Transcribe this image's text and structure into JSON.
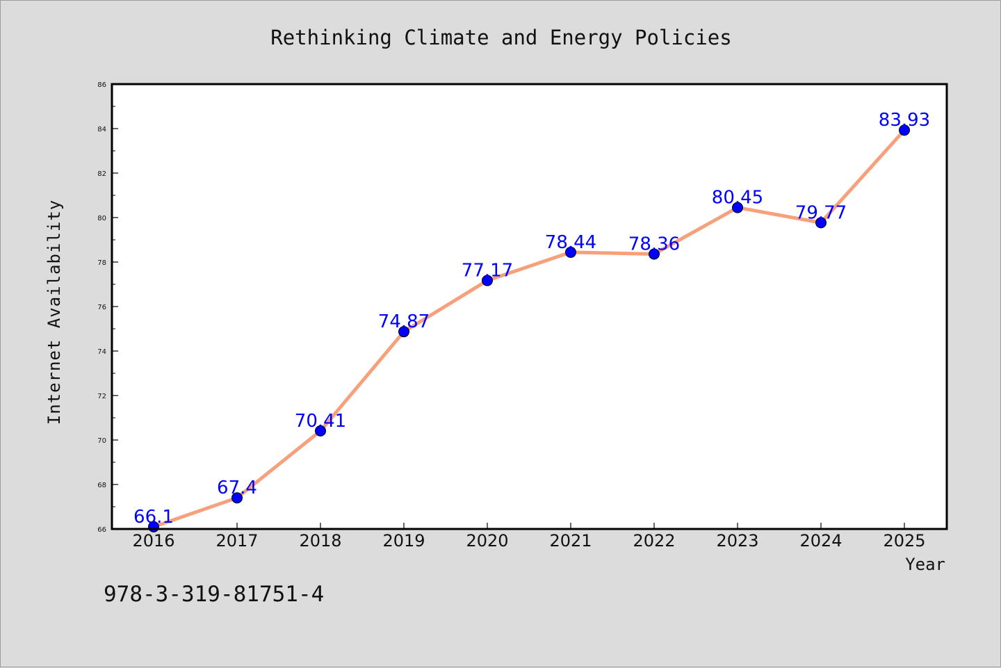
{
  "chart_data": {
    "type": "line",
    "title": "Rethinking Climate and Energy Policies",
    "xlabel": "Year",
    "ylabel": "Internet Availability",
    "x": [
      "2016",
      "2017",
      "2018",
      "2019",
      "2020",
      "2021",
      "2022",
      "2023",
      "2024",
      "2025"
    ],
    "series": [
      {
        "values": [
          66.1,
          67.4,
          70.41,
          74.87,
          77.17,
          78.44,
          78.36,
          80.45,
          79.77,
          83.93
        ],
        "data_labels": [
          "66.1",
          "67.4",
          "70.41",
          "74.87",
          "77.17",
          "78.44",
          "78.36",
          "80.45",
          "79.77",
          "83.93"
        ],
        "line_color": "#f7a07c",
        "marker_color": "#0000ff"
      }
    ],
    "ylim": [
      66,
      86
    ],
    "yticks": [
      "66",
      "68",
      "70",
      "72",
      "74",
      "76",
      "78",
      "80",
      "82",
      "84",
      "86"
    ],
    "grid": false,
    "legend": "none"
  },
  "annotations": {
    "isbn": "978-3-319-81751-4"
  },
  "colors": {
    "background": "#dcdcdc",
    "plot_background": "#ffffff",
    "axis": "#000000",
    "label_text": "#0000ff"
  }
}
